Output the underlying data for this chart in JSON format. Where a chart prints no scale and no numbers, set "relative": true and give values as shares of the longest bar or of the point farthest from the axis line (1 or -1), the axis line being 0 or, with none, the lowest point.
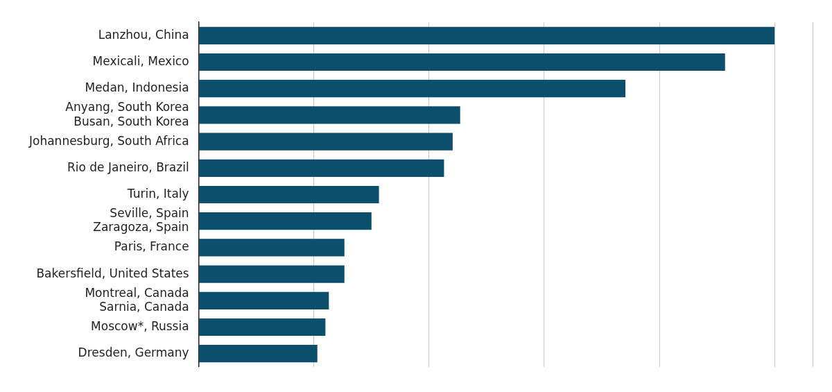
{
  "chart_data": {
    "type": "bar",
    "orientation": "horizontal",
    "relative": true,
    "grid": "x",
    "categories": [
      "Lanzhou, China",
      "Mexicali, Mexico",
      "Medan, Indonesia",
      "Anyang, South Korea\nBusan, South Korea",
      "Johannesburg, South Africa",
      "Rio de Janeiro, Brazil",
      "Turin, Italy",
      "Seville, Spain\nZaragoza, Spain",
      "Paris, France",
      "Bakersfield, United States",
      "Montreal, Canada\nSarnia, Canada",
      "Moscow*, Russia",
      "Dresden, Germany"
    ],
    "values": [
      1,
      0.914,
      0.741,
      0.454,
      0.441,
      0.426,
      0.313,
      0.3,
      0.253,
      0.253,
      0.226,
      0.22,
      0.206
    ],
    "color": "#0b4f6c"
  }
}
